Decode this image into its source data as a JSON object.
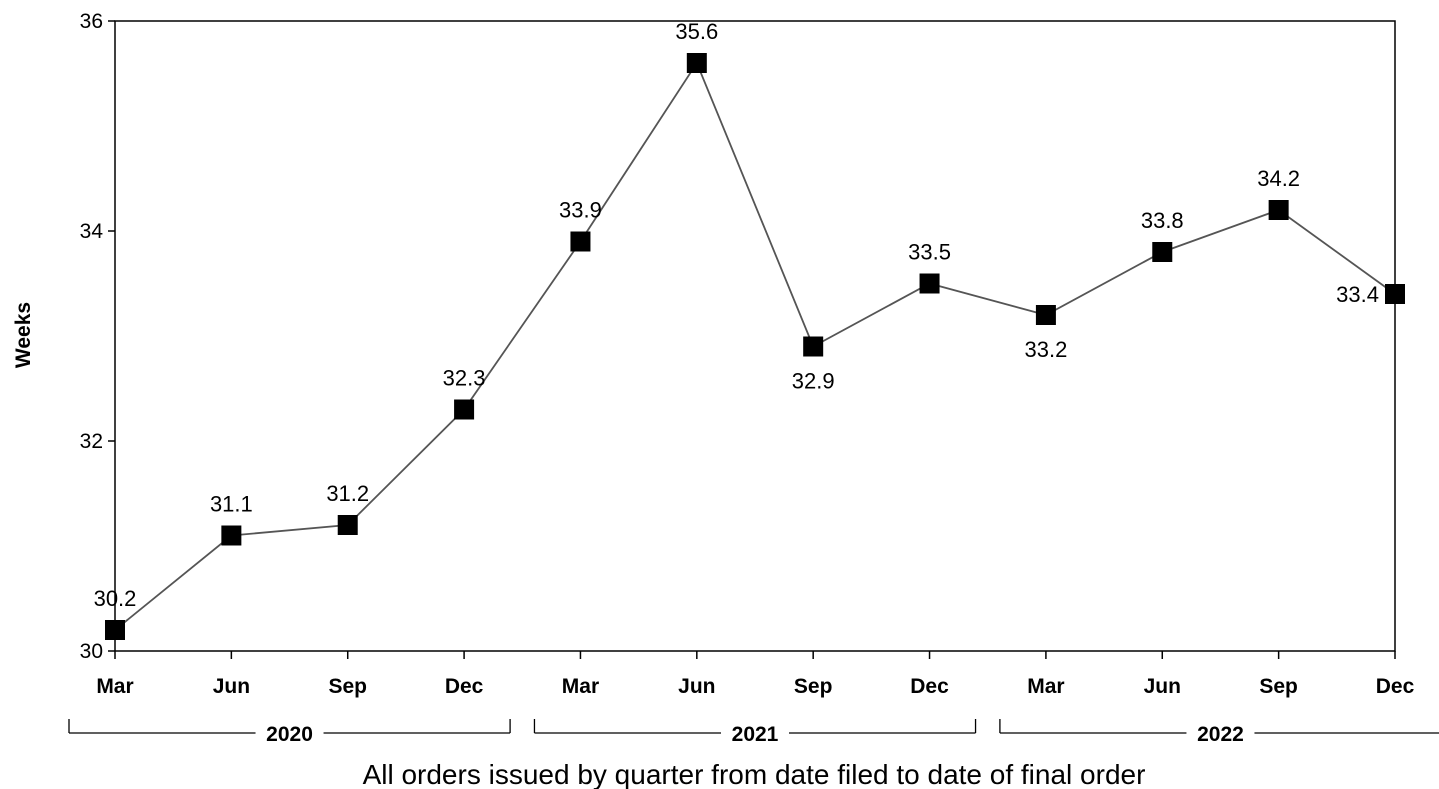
{
  "chart_data": {
    "type": "line",
    "title": "",
    "xlabel": "All orders issued by quarter from date filed to date of final order",
    "ylabel": "Weeks",
    "ylim": [
      30,
      36
    ],
    "yticks": [
      "30",
      "32",
      "34",
      "36"
    ],
    "grid": false,
    "legend": "none",
    "categories": [
      "Mar",
      "Jun",
      "Sep",
      "Dec",
      "Mar",
      "Jun",
      "Sep",
      "Dec",
      "Mar",
      "Jun",
      "Sep",
      "Dec"
    ],
    "years": [
      {
        "label": "2020",
        "start": 0,
        "end": 3
      },
      {
        "label": "2021",
        "start": 4,
        "end": 7
      },
      {
        "label": "2022",
        "start": 8,
        "end": 11
      }
    ],
    "series": [
      {
        "values": [
          30.2,
          31.1,
          31.2,
          32.3,
          33.9,
          35.6,
          32.9,
          33.5,
          33.2,
          33.8,
          34.2,
          33.4
        ],
        "labels": [
          "30.2",
          "31.1",
          "31.2",
          "32.3",
          "33.9",
          "35.6",
          "32.9",
          "33.5",
          "33.2",
          "33.8",
          "34.2",
          "33.4"
        ],
        "label_position": [
          "above",
          "above",
          "above",
          "above",
          "above",
          "above",
          "below",
          "above",
          "below",
          "above",
          "above",
          "left"
        ],
        "line_color": "#555555",
        "marker_color": "#000000",
        "marker": "square"
      }
    ]
  }
}
